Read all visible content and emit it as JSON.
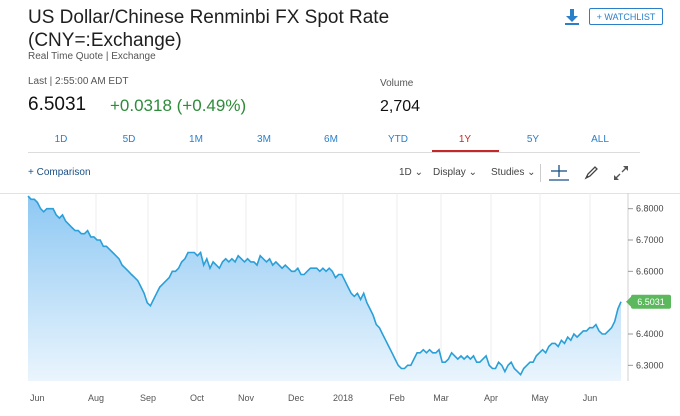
{
  "header": {
    "title_line1": "US Dollar/Chinese Renminbi FX Spot Rate",
    "title_line2": "(CNY=:Exchange)",
    "subtitle": "Real Time Quote | Exchange",
    "watchlist_label": "+ WATCHLIST"
  },
  "quote": {
    "last_label": "Last | 2:55:00 AM EDT",
    "price": "6.5031",
    "change": "+0.0318 (+0.49%)",
    "volume_label": "Volume",
    "volume": "2,704"
  },
  "tabs": [
    {
      "label": "1D"
    },
    {
      "label": "5D"
    },
    {
      "label": "1M"
    },
    {
      "label": "3M"
    },
    {
      "label": "6M"
    },
    {
      "label": "YTD"
    },
    {
      "label": "1Y",
      "active": true
    },
    {
      "label": "5Y"
    },
    {
      "label": "ALL"
    }
  ],
  "toolbar": {
    "comparison": "+ Comparison",
    "interval": "1D",
    "display": "Display",
    "studies": "Studies"
  },
  "colors": {
    "accent": "#2a7fc9",
    "positive": "#2e8b3a",
    "active_tab": "#c62828",
    "line": "#2a9fd8",
    "fill_top": "#8ec8f3",
    "fill_bottom": "#eaf5fd",
    "last_badge": "#5cb85c"
  },
  "chart_data": {
    "type": "area",
    "x_labels": [
      "Jun",
      "Aug",
      "Sep",
      "Oct",
      "Nov",
      "Dec",
      "2018",
      "Feb",
      "Mar",
      "Apr",
      "May",
      "Jun"
    ],
    "y_ticks": [
      "6.8000",
      "6.7000",
      "6.6000",
      "6.5000",
      "6.4000",
      "6.3000"
    ],
    "ylim": [
      6.25,
      6.85
    ],
    "grid": "vertical",
    "last_value_label": "6.5031",
    "series": [
      {
        "values": [
          6.84,
          6.83,
          6.83,
          6.82,
          6.8,
          6.79,
          6.8,
          6.8,
          6.8,
          6.78,
          6.77,
          6.78,
          6.76,
          6.75,
          6.74,
          6.73,
          6.73,
          6.72,
          6.72,
          6.73,
          6.71,
          6.71,
          6.7,
          6.7,
          6.68,
          6.68,
          6.67,
          6.66,
          6.65,
          6.64,
          6.62,
          6.61,
          6.6,
          6.59,
          6.58,
          6.57,
          6.55,
          6.53,
          6.5,
          6.49,
          6.51,
          6.53,
          6.55,
          6.56,
          6.57,
          6.58,
          6.6,
          6.6,
          6.61,
          6.63,
          6.64,
          6.66,
          6.66,
          6.66,
          6.65,
          6.66,
          6.62,
          6.64,
          6.61,
          6.63,
          6.62,
          6.61,
          6.63,
          6.64,
          6.63,
          6.64,
          6.63,
          6.65,
          6.64,
          6.63,
          6.64,
          6.63,
          6.63,
          6.62,
          6.65,
          6.64,
          6.63,
          6.64,
          6.62,
          6.63,
          6.62,
          6.61,
          6.62,
          6.61,
          6.6,
          6.6,
          6.61,
          6.59,
          6.59,
          6.6,
          6.61,
          6.61,
          6.61,
          6.6,
          6.61,
          6.6,
          6.61,
          6.6,
          6.58,
          6.59,
          6.59,
          6.57,
          6.55,
          6.53,
          6.52,
          6.53,
          6.51,
          6.53,
          6.5,
          6.48,
          6.46,
          6.43,
          6.42,
          6.4,
          6.38,
          6.36,
          6.34,
          6.32,
          6.3,
          6.29,
          6.29,
          6.3,
          6.3,
          6.32,
          6.34,
          6.34,
          6.35,
          6.34,
          6.35,
          6.34,
          6.34,
          6.35,
          6.31,
          6.31,
          6.32,
          6.34,
          6.33,
          6.32,
          6.33,
          6.32,
          6.33,
          6.32,
          6.33,
          6.31,
          6.31,
          6.32,
          6.33,
          6.3,
          6.29,
          6.29,
          6.31,
          6.3,
          6.28,
          6.3,
          6.31,
          6.29,
          6.28,
          6.27,
          6.29,
          6.3,
          6.31,
          6.31,
          6.33,
          6.34,
          6.35,
          6.34,
          6.36,
          6.37,
          6.37,
          6.36,
          6.38,
          6.37,
          6.39,
          6.38,
          6.4,
          6.39,
          6.4,
          6.41,
          6.41,
          6.42,
          6.42,
          6.43,
          6.41,
          6.4,
          6.4,
          6.41,
          6.42,
          6.44,
          6.48,
          6.5031
        ]
      }
    ]
  }
}
